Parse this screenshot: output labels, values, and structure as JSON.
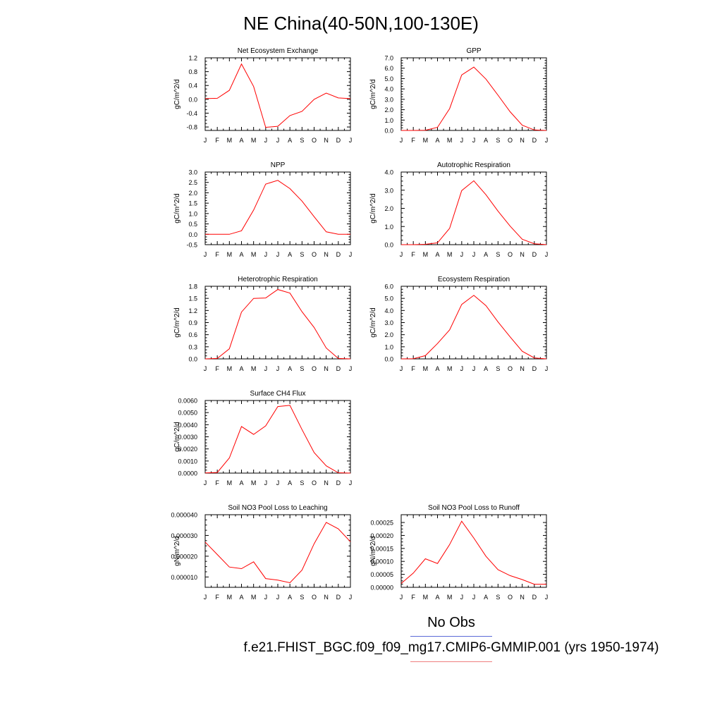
{
  "title": "NE China(40-50N,100-130E)",
  "months": [
    "J",
    "F",
    "M",
    "A",
    "M",
    "J",
    "J",
    "A",
    "S",
    "O",
    "N",
    "D",
    "J"
  ],
  "legend": {
    "obs_label": "No Obs",
    "model_label": "f.e21.FHIST_BGC.f09_f09_mg17.CMIP6-GMMIP.001 (yrs 1950-1974)"
  },
  "colors": {
    "series": "#ff0000",
    "obs_line": "#5b6bd8",
    "model_line": "#f08080"
  },
  "chart_data": [
    {
      "type": "line",
      "title": "Net Ecosystem Exchange",
      "ylabel": "gC/m^2/d",
      "ylim": [
        -0.9,
        1.2
      ],
      "yticks": [
        "1.2",
        "0.8",
        "0.4",
        "0.0",
        "-0.4",
        "-0.8"
      ],
      "ytick_values": [
        1.2,
        0.8,
        0.4,
        0.0,
        -0.4,
        -0.8
      ],
      "values": [
        0.02,
        0.03,
        0.26,
        1.02,
        0.37,
        -0.81,
        -0.78,
        -0.47,
        -0.35,
        0.0,
        0.18,
        0.04,
        0.02
      ]
    },
    {
      "type": "line",
      "title": "GPP",
      "ylabel": "gC/m^2/d",
      "ylim": [
        0.0,
        7.0
      ],
      "yticks": [
        "7.0",
        "6.0",
        "5.0",
        "4.0",
        "3.0",
        "2.0",
        "1.0",
        "0.0"
      ],
      "ytick_values": [
        7,
        6,
        5,
        4,
        3,
        2,
        1,
        0
      ],
      "values": [
        0.0,
        0.0,
        0.02,
        0.3,
        2.1,
        5.35,
        6.1,
        4.95,
        3.4,
        1.8,
        0.5,
        0.05,
        0.0
      ]
    },
    {
      "type": "line",
      "title": "NPP",
      "ylabel": "gC/m^2/d",
      "ylim": [
        -0.5,
        3.0
      ],
      "yticks": [
        "3.0",
        "2.5",
        "2.0",
        "1.5",
        "1.0",
        "0.5",
        "0.0",
        "-0.5"
      ],
      "ytick_values": [
        3.0,
        2.5,
        2.0,
        1.5,
        1.0,
        0.5,
        0.0,
        -0.5
      ],
      "values": [
        0.0,
        0.0,
        0.0,
        0.17,
        1.17,
        2.42,
        2.6,
        2.2,
        1.6,
        0.85,
        0.12,
        0.0,
        0.0
      ]
    },
    {
      "type": "line",
      "title": "Autotrophic Respiration",
      "ylabel": "gC/m^2/d",
      "ylim": [
        0.0,
        4.0
      ],
      "yticks": [
        "4.0",
        "3.0",
        "2.0",
        "1.0",
        "0.0"
      ],
      "ytick_values": [
        4,
        3,
        2,
        1,
        0
      ],
      "values": [
        0.0,
        0.0,
        0.02,
        0.1,
        0.9,
        2.98,
        3.52,
        2.75,
        1.85,
        1.02,
        0.3,
        0.05,
        0.0
      ]
    },
    {
      "type": "line",
      "title": "Heterotrophic Respiration",
      "ylabel": "gC/m^2/d",
      "ylim": [
        0.0,
        1.8
      ],
      "yticks": [
        "1.8",
        "1.5",
        "1.2",
        "0.9",
        "0.6",
        "0.3",
        "0.0"
      ],
      "ytick_values": [
        1.8,
        1.5,
        1.2,
        0.9,
        0.6,
        0.3,
        0.0
      ],
      "values": [
        0.0,
        0.01,
        0.25,
        1.16,
        1.5,
        1.51,
        1.72,
        1.63,
        1.17,
        0.78,
        0.27,
        0.01,
        0.0
      ]
    },
    {
      "type": "line",
      "title": "Ecosystem Respiration",
      "ylabel": "gC/m^2/d",
      "ylim": [
        0.0,
        6.0
      ],
      "yticks": [
        "6.0",
        "5.0",
        "4.0",
        "3.0",
        "2.0",
        "1.0",
        "0.0"
      ],
      "ytick_values": [
        6,
        5,
        4,
        3,
        2,
        1,
        0
      ],
      "values": [
        0.0,
        0.02,
        0.27,
        1.27,
        2.4,
        4.5,
        5.25,
        4.4,
        3.05,
        1.82,
        0.63,
        0.08,
        0.0
      ]
    },
    {
      "type": "line",
      "title": "Surface CH4 Flux",
      "ylabel": "gC/m^2/d",
      "ylim": [
        0.0,
        0.006
      ],
      "yticks": [
        "0.0060",
        "0.0050",
        "0.0040",
        "0.0030",
        "0.0020",
        "0.0010",
        "0.0000"
      ],
      "ytick_values": [
        0.006,
        0.005,
        0.004,
        0.003,
        0.002,
        0.001,
        0.0
      ],
      "values": [
        2e-05,
        5e-05,
        0.00125,
        0.00385,
        0.0032,
        0.0039,
        0.0055,
        0.0056,
        0.0036,
        0.0017,
        0.0006,
        3e-05,
        0.0
      ]
    },
    null,
    {
      "type": "line",
      "title": "Soil NO3 Pool Loss to Leaching",
      "ylabel": "gN/m^2/d",
      "ylim": [
        5e-06,
        4e-05
      ],
      "yticks": [
        "0.000040",
        "0.000030",
        "0.000020",
        "0.000010"
      ],
      "ytick_values": [
        4e-05,
        3e-05,
        2e-05,
        1e-05
      ],
      "values": [
        2.68e-05,
        2.08e-05,
        1.48e-05,
        1.4e-05,
        1.73e-05,
        9.2e-06,
        8.5e-06,
        7.2e-06,
        1.33e-05,
        2.6e-05,
        3.63e-05,
        3.32e-05,
        2.7e-05
      ]
    },
    {
      "type": "line",
      "title": "Soil NO3 Pool Loss to Runoff",
      "ylabel": "gN/m^2/d",
      "ylim": [
        0.0,
        0.00028
      ],
      "yticks": [
        "0.00025",
        "0.00020",
        "0.00015",
        "0.00010",
        "0.00005",
        "0.00000"
      ],
      "ytick_values": [
        0.00025,
        0.0002,
        0.00015,
        0.0001,
        5e-05,
        0.0
      ],
      "values": [
        1.5e-05,
        5.5e-05,
        0.00011,
        9.2e-05,
        0.000165,
        0.000255,
        0.00019,
        0.00012,
        6.8e-05,
        4.5e-05,
        3e-05,
        1.2e-05,
        1.2e-05
      ]
    }
  ]
}
